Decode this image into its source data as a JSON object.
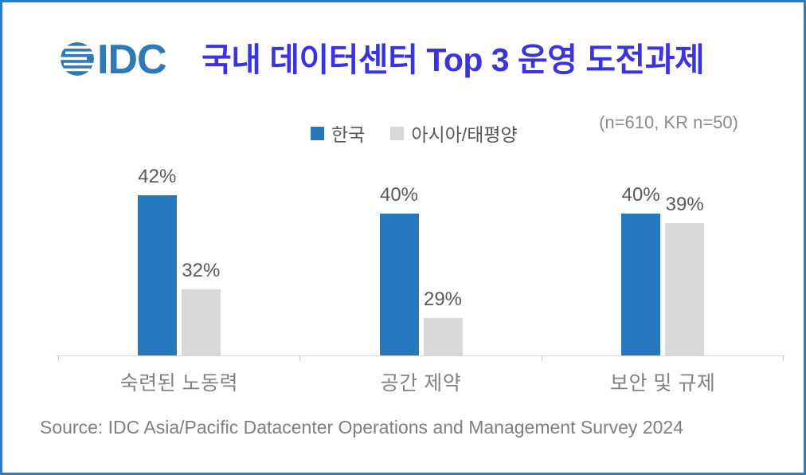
{
  "window": {
    "border_color": "#2E7BC6",
    "background": "#FFFFFF"
  },
  "header": {
    "logo": {
      "text": "IDC",
      "color": "#2E79B8",
      "icon": "striped-globe-icon"
    },
    "title": "국내 데이터센터 Top 3 운영 도전과제",
    "title_color": "#3A34E0"
  },
  "annotations": {
    "sample_note": "(n=610, KR n=50)"
  },
  "footer": {
    "source": "Source: IDC Asia/Pacific Datacenter Operations and Management Survey 2024"
  },
  "chart_data": {
    "type": "bar",
    "title": "국내 데이터센터 Top 3 운영 도전과제",
    "categories": [
      "숙련된 노동력",
      "공간 제약",
      "보안 및 규제"
    ],
    "series": [
      {
        "name": "한국",
        "color": "#2478BB",
        "values": [
          42,
          40,
          40
        ]
      },
      {
        "name": "아시아/태평양",
        "color": "#D9D9D9",
        "values": [
          32,
          29,
          39
        ]
      }
    ],
    "value_suffix": "%",
    "data_labels": true,
    "grid": false,
    "legend_position": "top-center",
    "ylim": [
      25,
      45
    ],
    "axis_color": "#D9D9D9",
    "value_label_color": "#595959",
    "category_label_color": "#828282"
  }
}
